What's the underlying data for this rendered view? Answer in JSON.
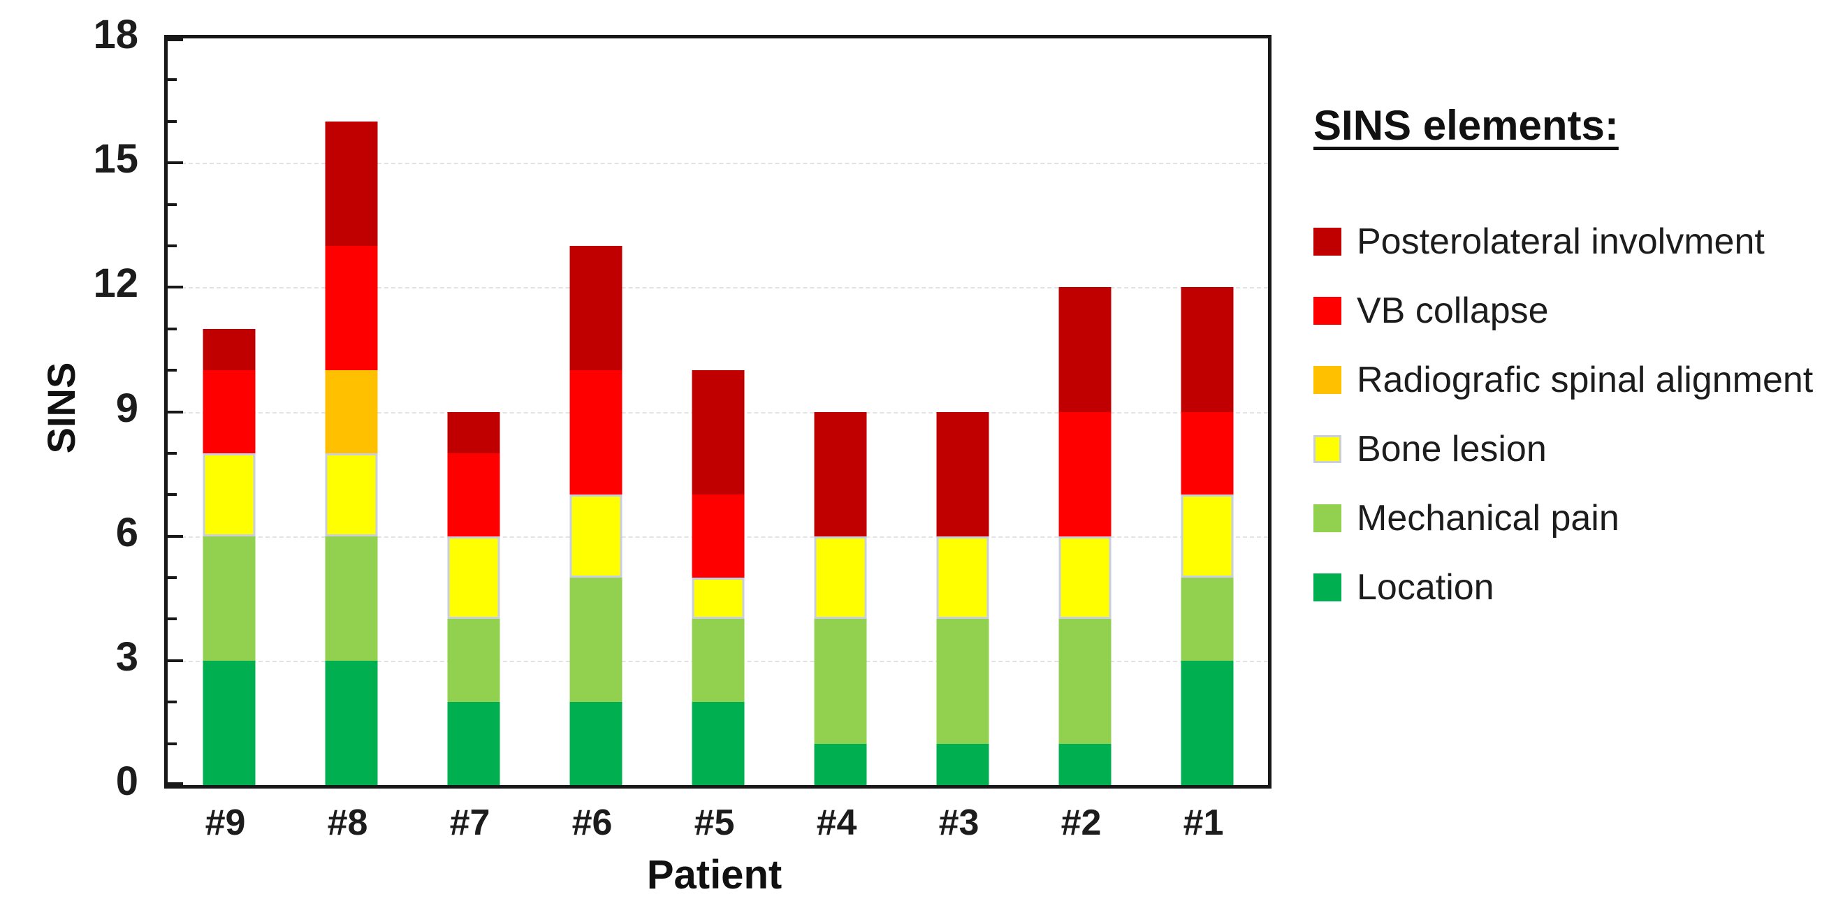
{
  "chart_data": {
    "type": "bar",
    "stacked": true,
    "xlabel": "Patient",
    "ylabel": "SINS",
    "ylim": [
      0,
      18
    ],
    "yticks": [
      0,
      3,
      6,
      9,
      12,
      15,
      18
    ],
    "minor_tick_step": 1,
    "gridlines_at": [
      3,
      6,
      9,
      12,
      15
    ],
    "grid_color": "#e2e2e2",
    "legend_title": "SINS elements:",
    "legend_position": "right",
    "categories": [
      "#9",
      "#8",
      "#7",
      "#6",
      "#5",
      "#4",
      "#3",
      "#2",
      "#1"
    ],
    "series": [
      {
        "name": "Location",
        "color": "#00B050",
        "border": null,
        "values": [
          3,
          3,
          2,
          2,
          2,
          1,
          1,
          1,
          3
        ]
      },
      {
        "name": "Mechanical pain",
        "color": "#92D050",
        "border": null,
        "values": [
          3,
          3,
          2,
          3,
          2,
          3,
          3,
          3,
          2
        ]
      },
      {
        "name": "Bone lesion",
        "color": "#FFFF00",
        "border": "#c9cede",
        "values": [
          2,
          2,
          2,
          2,
          1,
          2,
          2,
          2,
          2
        ]
      },
      {
        "name": "Radiografic spinal alignment",
        "color": "#FFC000",
        "border": null,
        "values": [
          0,
          2,
          0,
          0,
          0,
          0,
          0,
          0,
          0
        ]
      },
      {
        "name": "VB collapse",
        "color": "#FF0000",
        "border": null,
        "values": [
          2,
          3,
          2,
          3,
          2,
          0,
          0,
          3,
          2
        ]
      },
      {
        "name": "Posterolateral involvment",
        "color": "#C00000",
        "border": null,
        "values": [
          1,
          3,
          1,
          3,
          3,
          3,
          3,
          3,
          3
        ]
      }
    ],
    "stack_totals": [
      11,
      16,
      9,
      13,
      10,
      9,
      9,
      12,
      12
    ],
    "legend_order_top_to_bottom": [
      "Posterolateral involvment",
      "VB collapse",
      "Radiografic spinal alignment",
      "Bone lesion",
      "Mechanical pain",
      "Location"
    ]
  }
}
